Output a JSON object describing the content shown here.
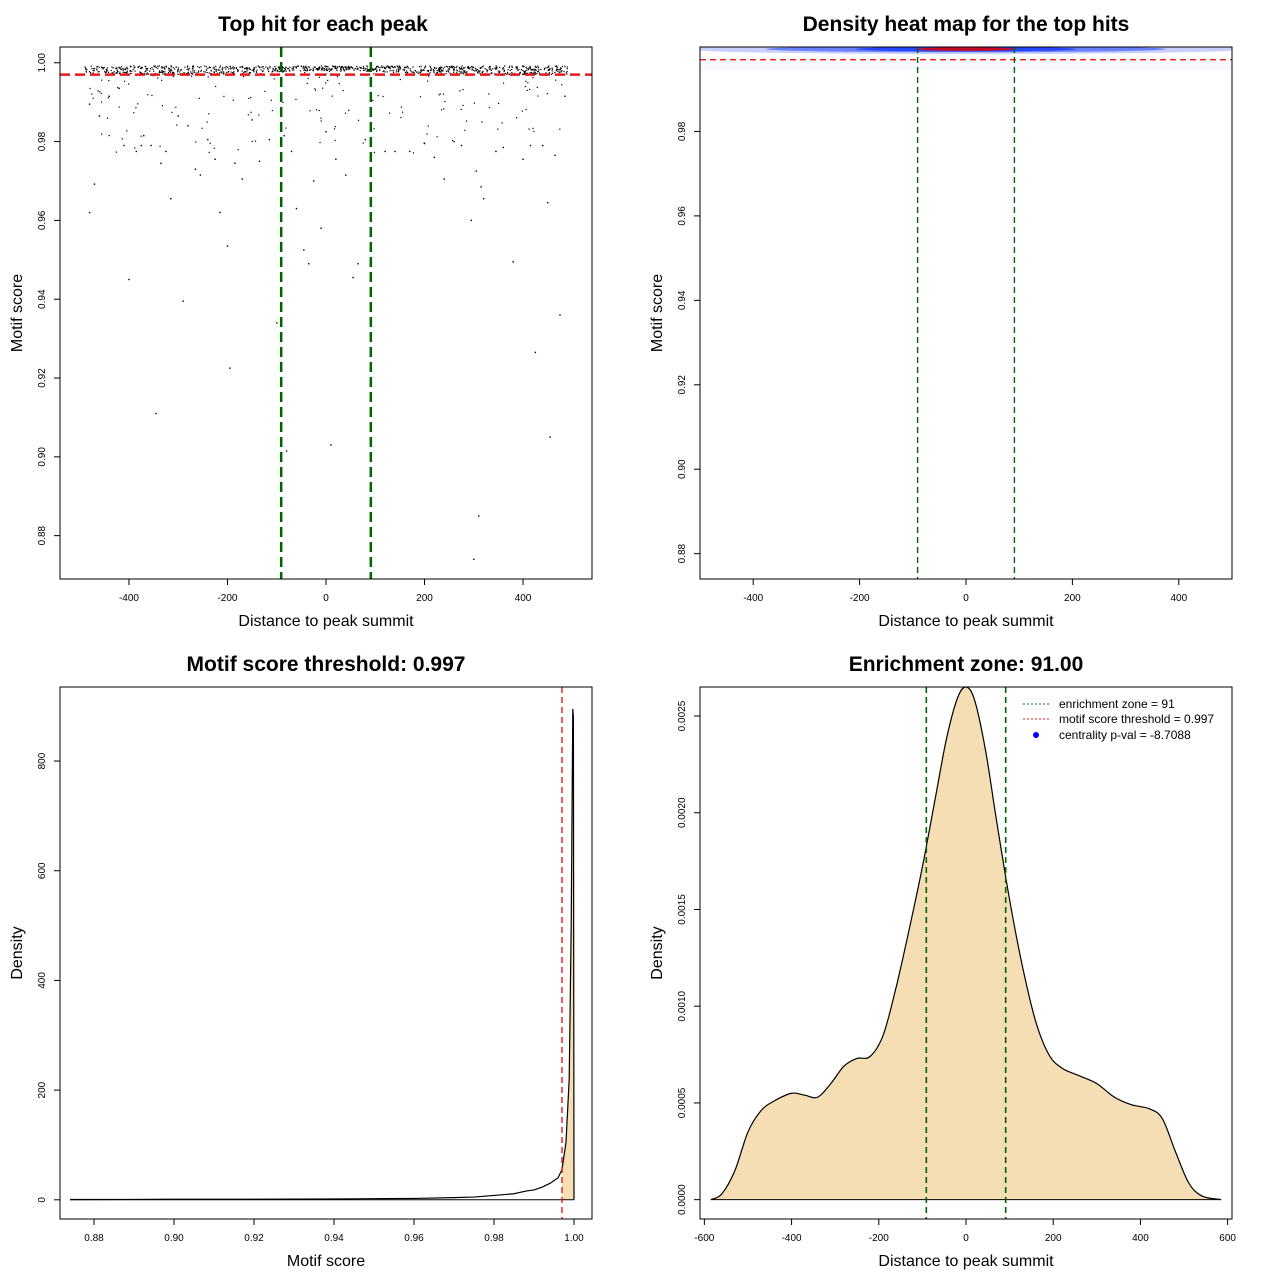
{
  "colors": {
    "point": "#000000",
    "threshold_line": "#e41a1c",
    "zone_line": "#006400",
    "fill": "#f5deb3",
    "heat_low": "#ffffff",
    "heat_mid": "#1f3fff",
    "heat_high": "#e00000",
    "frame": "#000000"
  },
  "chart_data": [
    {
      "type": "scatter",
      "title": "Top hit for each peak",
      "xlabel": "Distance to peak summit",
      "ylabel": "Motif score",
      "xlim": [
        -540,
        540
      ],
      "ylim": [
        0.869,
        1.004
      ],
      "xticks": [
        -400,
        -200,
        0,
        200,
        400
      ],
      "xtick_labels": [
        "-400",
        "-200",
        "0",
        "200",
        "400"
      ],
      "yticks": [
        0.88,
        0.9,
        0.92,
        0.94,
        0.96,
        0.98,
        1.0
      ],
      "ytick_labels": [
        "0.88",
        "0.90",
        "0.92",
        "0.94",
        "0.96",
        "0.98",
        "1.00"
      ],
      "hlines": [
        0.997
      ],
      "vlines": [
        -91,
        91
      ],
      "points": [
        [
          -480,
          0.9895
        ],
        [
          -470,
          0.9692
        ],
        [
          -480,
          0.962
        ],
        [
          -460,
          0.9865
        ],
        [
          -440,
          0.9915
        ],
        [
          -420,
          0.9935
        ],
        [
          -410,
          0.979
        ],
        [
          -400,
          0.945
        ],
        [
          -385,
          0.9775
        ],
        [
          -375,
          0.979
        ],
        [
          -370,
          0.9815
        ],
        [
          -355,
          0.979
        ],
        [
          -345,
          0.911
        ],
        [
          -335,
          0.9745
        ],
        [
          -325,
          0.9775
        ],
        [
          -315,
          0.9655
        ],
        [
          -300,
          0.9865
        ],
        [
          -290,
          0.9395
        ],
        [
          -280,
          0.984
        ],
        [
          -265,
          0.973
        ],
        [
          -255,
          0.9715
        ],
        [
          -240,
          0.9805
        ],
        [
          -225,
          0.9755
        ],
        [
          -215,
          0.962
        ],
        [
          -200,
          0.9535
        ],
        [
          -195,
          0.9225
        ],
        [
          -185,
          0.9745
        ],
        [
          -170,
          0.9705
        ],
        [
          -150,
          0.9855
        ],
        [
          -135,
          0.975
        ],
        [
          -115,
          0.9805
        ],
        [
          -100,
          0.934
        ],
        [
          -85,
          0.9815
        ],
        [
          -80,
          0.9015
        ],
        [
          -70,
          0.9775
        ],
        [
          -60,
          0.963
        ],
        [
          -45,
          0.9525
        ],
        [
          -35,
          0.949
        ],
        [
          -25,
          0.97
        ],
        [
          -10,
          0.958
        ],
        [
          0,
          0.9825
        ],
        [
          10,
          0.903
        ],
        [
          20,
          0.9755
        ],
        [
          40,
          0.9715
        ],
        [
          55,
          0.9455
        ],
        [
          65,
          0.949
        ],
        [
          80,
          0.9805
        ],
        [
          90,
          0.9605
        ],
        [
          120,
          0.9775
        ],
        [
          140,
          0.9775
        ],
        [
          170,
          0.9775
        ],
        [
          200,
          0.9795
        ],
        [
          220,
          0.976
        ],
        [
          240,
          0.9705
        ],
        [
          260,
          0.98
        ],
        [
          275,
          0.979
        ],
        [
          295,
          0.96
        ],
        [
          305,
          0.9725
        ],
        [
          310,
          0.885
        ],
        [
          315,
          0.9685
        ],
        [
          320,
          0.9655
        ],
        [
          300,
          0.874
        ],
        [
          345,
          0.9775
        ],
        [
          360,
          0.9785
        ],
        [
          380,
          0.9495
        ],
        [
          400,
          0.9755
        ],
        [
          415,
          0.979
        ],
        [
          425,
          0.9265
        ],
        [
          440,
          0.979
        ],
        [
          450,
          0.9645
        ],
        [
          455,
          0.905
        ],
        [
          465,
          0.9765
        ],
        [
          475,
          0.936
        ],
        [
          485,
          0.9915
        ]
      ]
    },
    {
      "type": "heatmap",
      "title": "Density heat map for the top hits",
      "xlabel": "Distance to peak summit",
      "ylabel": "Motif score",
      "xlim": [
        -500,
        500
      ],
      "ylim": [
        0.874,
        1.0
      ],
      "xticks": [
        -400,
        -200,
        0,
        200,
        400
      ],
      "xtick_labels": [
        "-400",
        "-200",
        "0",
        "200",
        "400"
      ],
      "yticks": [
        0.88,
        0.9,
        0.92,
        0.94,
        0.96,
        0.98
      ],
      "ytick_labels": [
        "0.88",
        "0.90",
        "0.92",
        "0.94",
        "0.96",
        "0.98"
      ],
      "hlines": [
        0.997
      ],
      "vlines": [
        -91,
        91
      ],
      "density_peak": {
        "x": 0,
        "y": 0.9995
      }
    },
    {
      "type": "area",
      "title": "Motif score threshold: 0.997",
      "xlabel": "Motif score",
      "ylabel": "Density",
      "xlim": [
        0.8715,
        1.0045
      ],
      "ylim": [
        -35,
        935
      ],
      "xticks": [
        0.88,
        0.9,
        0.92,
        0.94,
        0.96,
        0.98,
        1.0
      ],
      "xtick_labels": [
        "0.88",
        "0.90",
        "0.92",
        "0.94",
        "0.96",
        "0.98",
        "1.00"
      ],
      "yticks": [
        0,
        200,
        400,
        600,
        800
      ],
      "ytick_labels": [
        "0",
        "200",
        "400",
        "600",
        "800"
      ],
      "vlines": [
        0.997
      ],
      "filled_from": 0.997,
      "points": [
        [
          0.874,
          0.5
        ],
        [
          0.88,
          0.5
        ],
        [
          0.9,
          1.0
        ],
        [
          0.92,
          1.0
        ],
        [
          0.94,
          1.5
        ],
        [
          0.95,
          2.0
        ],
        [
          0.96,
          2.5
        ],
        [
          0.97,
          4.0
        ],
        [
          0.975,
          5.0
        ],
        [
          0.98,
          8.0
        ],
        [
          0.985,
          11.0
        ],
        [
          0.988,
          16.0
        ],
        [
          0.99,
          18.0
        ],
        [
          0.992,
          23.0
        ],
        [
          0.994,
          30.0
        ],
        [
          0.996,
          40.0
        ],
        [
          0.997,
          55.0
        ],
        [
          0.998,
          105.0
        ],
        [
          0.9988,
          220.0
        ],
        [
          0.9993,
          500.0
        ],
        [
          0.9997,
          895.0
        ],
        [
          0.99985,
          880.0
        ],
        [
          1.0,
          0.0
        ]
      ]
    },
    {
      "type": "area",
      "title": "Enrichment zone: 91.00",
      "xlabel": "Distance to peak summit",
      "ylabel": "Density",
      "xlim": [
        -610,
        610
      ],
      "ylim": [
        -0.0001,
        0.00265
      ],
      "xticks": [
        -600,
        -400,
        -200,
        0,
        200,
        400,
        600
      ],
      "xtick_labels": [
        "-600",
        "-400",
        "-200",
        "0",
        "200",
        "400",
        "600"
      ],
      "yticks": [
        0.0,
        0.0005,
        0.001,
        0.0015,
        0.002,
        0.0025
      ],
      "ytick_labels": [
        "0.0000",
        "0.0005",
        "0.0010",
        "0.0015",
        "0.0020",
        "0.0025"
      ],
      "vlines": [
        -91,
        91
      ],
      "points": [
        [
          -585,
          0.0
        ],
        [
          -560,
          3e-05
        ],
        [
          -530,
          0.00015
        ],
        [
          -500,
          0.00035
        ],
        [
          -470,
          0.00046
        ],
        [
          -440,
          0.00051
        ],
        [
          -400,
          0.00055
        ],
        [
          -370,
          0.00054
        ],
        [
          -340,
          0.00053
        ],
        [
          -310,
          0.0006
        ],
        [
          -280,
          0.00069
        ],
        [
          -250,
          0.00073
        ],
        [
          -220,
          0.00074
        ],
        [
          -190,
          0.00085
        ],
        [
          -160,
          0.0011
        ],
        [
          -130,
          0.0014
        ],
        [
          -100,
          0.00172
        ],
        [
          -70,
          0.00208
        ],
        [
          -45,
          0.00238
        ],
        [
          -20,
          0.00259
        ],
        [
          0,
          0.00265
        ],
        [
          20,
          0.00258
        ],
        [
          45,
          0.00232
        ],
        [
          70,
          0.00196
        ],
        [
          100,
          0.00155
        ],
        [
          130,
          0.0012
        ],
        [
          160,
          0.00092
        ],
        [
          190,
          0.00075
        ],
        [
          220,
          0.00068
        ],
        [
          260,
          0.00064
        ],
        [
          300,
          0.0006
        ],
        [
          340,
          0.00053
        ],
        [
          380,
          0.00049
        ],
        [
          420,
          0.00047
        ],
        [
          450,
          0.00042
        ],
        [
          480,
          0.00025
        ],
        [
          510,
          9e-05
        ],
        [
          540,
          2e-05
        ],
        [
          585,
          0.0
        ]
      ],
      "legend": [
        {
          "label": "enrichment zone = 91",
          "style": "dotted-line",
          "color": "#006400"
        },
        {
          "label": "motif score threshold = 0.997",
          "style": "dotted-line",
          "color": "#e41a1c"
        },
        {
          "label": "centrality p-val = -8.7088",
          "style": "dot",
          "color": "#0000ff"
        }
      ],
      "legend_position": "top-right"
    }
  ]
}
